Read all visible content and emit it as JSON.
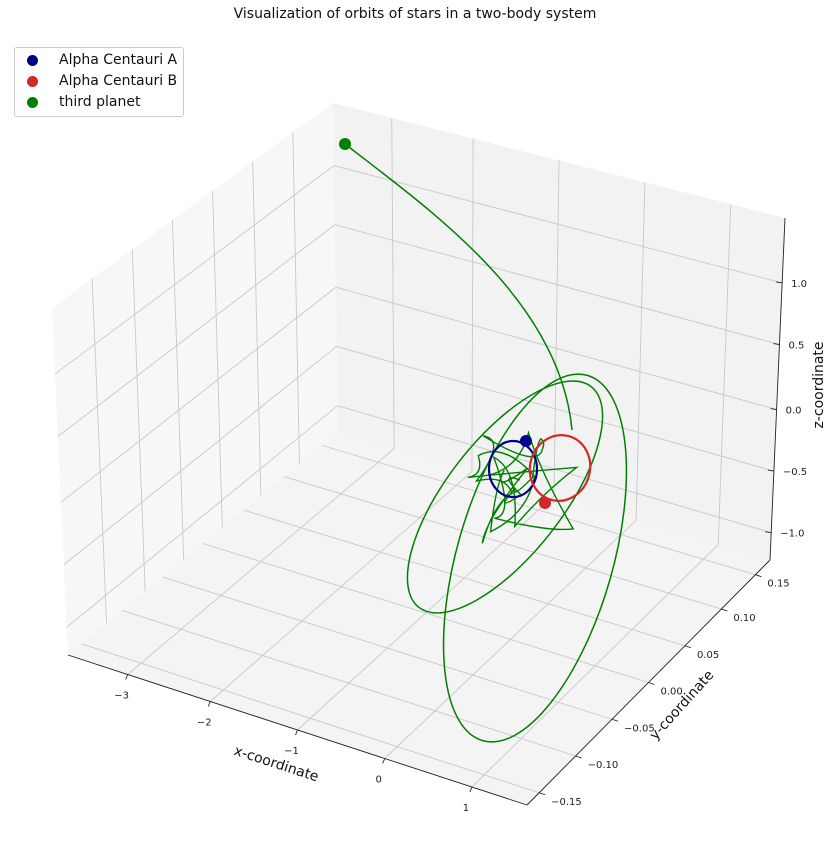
{
  "chart_data": {
    "type": "line",
    "projection": "3d",
    "title": "Visualization of orbits of stars in a two-body system",
    "xlabel": "x-coordinate",
    "ylabel": "y-coordinate",
    "zlabel": "z-coordinate",
    "xticks": [
      "−3",
      "−2",
      "−1",
      "0",
      "1"
    ],
    "yticks": [
      "0.15",
      "0.10",
      "0.05",
      "0.00",
      "−0.05",
      "−0.10",
      "−0.15"
    ],
    "zticks": [
      "1.0",
      "0.5",
      "0.0",
      "−0.5",
      "−1.0"
    ],
    "grid": true,
    "legend_position": "top-left",
    "series": [
      {
        "name": "Alpha Centauri A",
        "color": "#00008b",
        "marker": "circle"
      },
      {
        "name": "Alpha Centauri B",
        "color": "#d62728",
        "marker": "circle"
      },
      {
        "name": "third planet",
        "color": "#008000",
        "marker": "circle"
      }
    ]
  }
}
